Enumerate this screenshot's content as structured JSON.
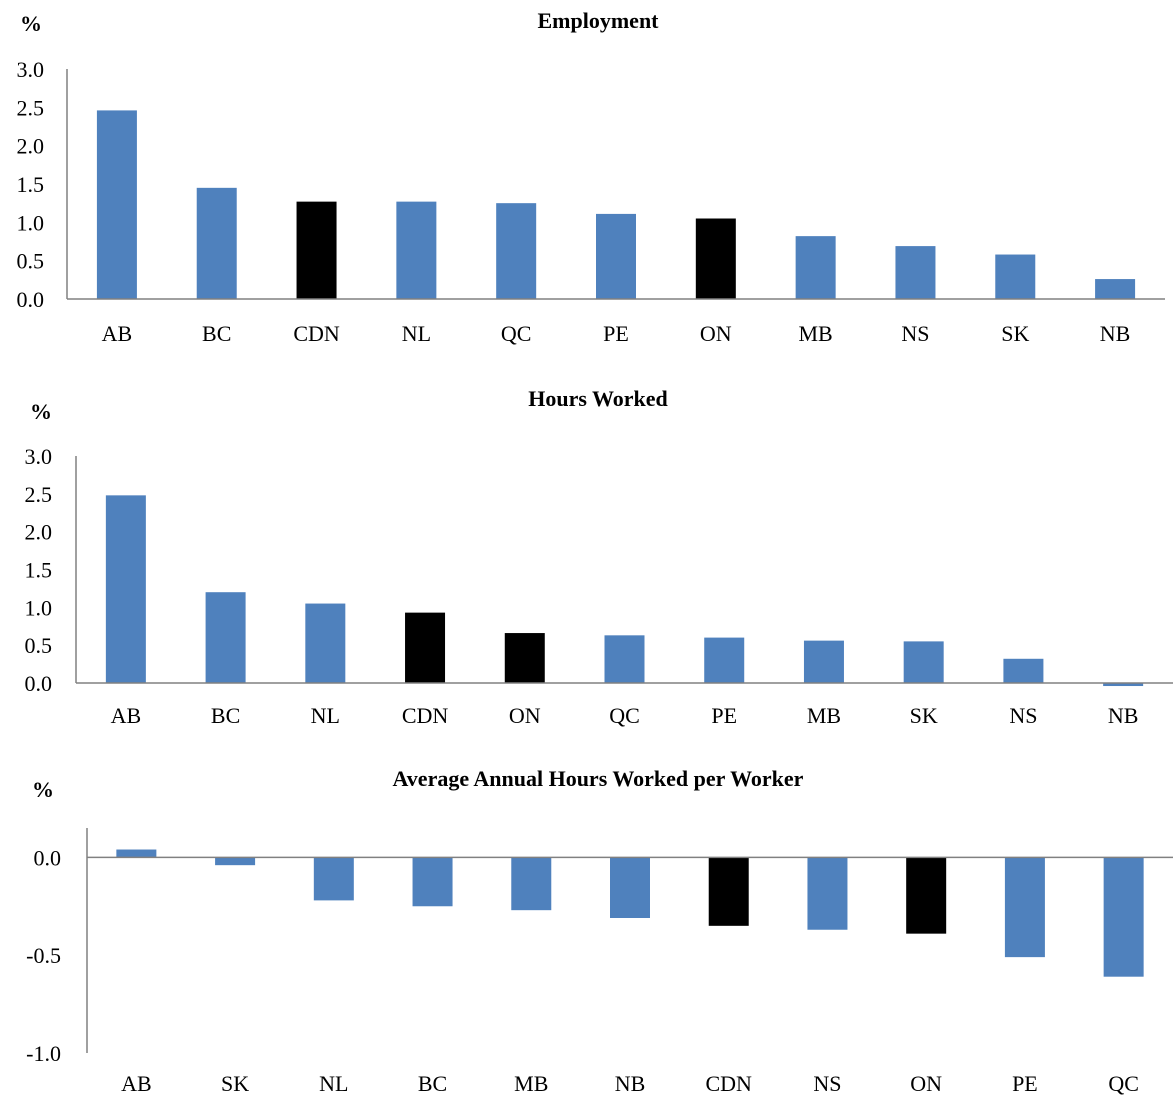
{
  "colors": {
    "province": "#4f81bd",
    "aggregate": "#000000"
  },
  "chart_data": [
    {
      "type": "bar",
      "title": "Employment",
      "ylabel": "%",
      "ylim": [
        0,
        3.0
      ],
      "yticks": [
        "3.0",
        "2.5",
        "2.0",
        "1.5",
        "1.0",
        "0.5",
        "0.0"
      ],
      "yticks_values": [
        3.0,
        2.5,
        2.0,
        1.5,
        1.0,
        0.5,
        0.0
      ],
      "categories": [
        "AB",
        "BC",
        "CDN",
        "NL",
        "QC",
        "PE",
        "ON",
        "MB",
        "NS",
        "SK",
        "NB"
      ],
      "values": [
        2.46,
        1.45,
        1.27,
        1.27,
        1.25,
        1.11,
        1.05,
        0.82,
        0.69,
        0.58,
        0.26
      ],
      "highlight": [
        "CDN",
        "ON"
      ]
    },
    {
      "type": "bar",
      "title": "Hours Worked",
      "ylabel": "%",
      "ylim": [
        0,
        3.0
      ],
      "yticks": [
        "3.0",
        "2.5",
        "2.0",
        "1.5",
        "1.0",
        "0.5",
        "0.0"
      ],
      "yticks_values": [
        3.0,
        2.5,
        2.0,
        1.5,
        1.0,
        0.5,
        0.0
      ],
      "categories": [
        "AB",
        "BC",
        "NL",
        "CDN",
        "ON",
        "QC",
        "PE",
        "MB",
        "SK",
        "NS",
        "NB"
      ],
      "values": [
        2.48,
        1.2,
        1.05,
        0.93,
        0.66,
        0.63,
        0.6,
        0.56,
        0.55,
        0.32,
        -0.04
      ],
      "highlight": [
        "CDN",
        "ON"
      ]
    },
    {
      "type": "bar",
      "title": "Average Annual Hours Worked per Worker",
      "ylabel": "%",
      "ylim": [
        -1.0,
        0.15
      ],
      "yticks": [
        "0.0",
        "-0.5",
        "-1.0"
      ],
      "yticks_values": [
        0.0,
        -0.5,
        -1.0
      ],
      "categories": [
        "AB",
        "SK",
        "NL",
        "BC",
        "MB",
        "NB",
        "CDN",
        "NS",
        "ON",
        "PE",
        "QC"
      ],
      "values": [
        0.04,
        -0.04,
        -0.22,
        -0.25,
        -0.27,
        -0.31,
        -0.35,
        -0.37,
        -0.39,
        -0.51,
        -0.61
      ],
      "highlight": [
        "CDN",
        "ON"
      ]
    }
  ]
}
